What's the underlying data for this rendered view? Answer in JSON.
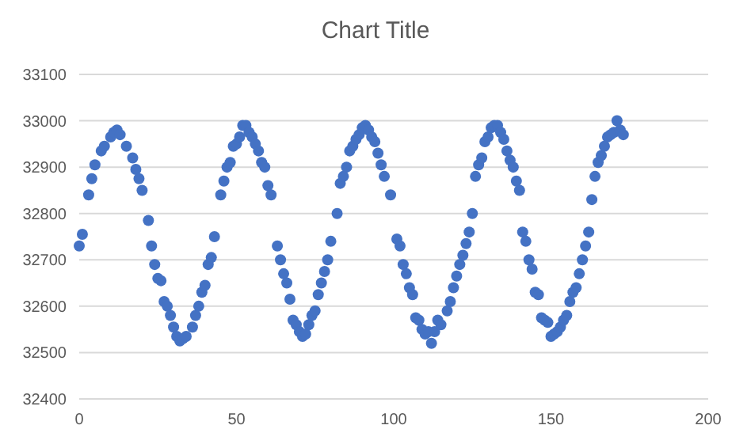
{
  "chart_data": {
    "type": "scatter",
    "title": "Chart Title",
    "marker": "circle",
    "grid": "y",
    "xlim": [
      0,
      200
    ],
    "xticks": [
      0,
      50,
      100,
      150,
      200
    ],
    "ylim": [
      32400,
      33100
    ],
    "yticks": [
      32400,
      32500,
      32600,
      32700,
      32800,
      32900,
      33000,
      33100
    ],
    "series": [
      {
        "color": "#4472c4",
        "x": [
          0,
          1,
          3,
          4,
          5,
          7,
          8,
          10,
          11,
          12,
          13,
          15,
          17,
          18,
          19,
          20,
          22,
          23,
          24,
          25,
          26,
          27,
          28,
          29,
          30,
          31,
          32,
          33,
          34,
          36,
          37,
          38,
          39,
          40,
          41,
          42,
          43,
          45,
          46,
          47,
          48,
          49,
          50,
          51,
          52,
          53,
          54,
          55,
          56,
          57,
          58,
          59,
          60,
          61,
          63,
          64,
          65,
          66,
          67,
          68,
          69,
          70,
          71,
          72,
          73,
          74,
          75,
          76,
          77,
          78,
          79,
          80,
          82,
          83,
          84,
          85,
          86,
          87,
          88,
          89,
          90,
          91,
          92,
          93,
          94,
          95,
          96,
          97,
          99,
          101,
          102,
          103,
          104,
          105,
          106,
          107,
          108,
          109,
          110,
          111,
          112,
          113,
          114,
          115,
          117,
          118,
          119,
          120,
          121,
          122,
          123,
          124,
          125,
          126,
          127,
          128,
          129,
          130,
          131,
          132,
          133,
          134,
          135,
          136,
          137,
          138,
          139,
          140,
          141,
          142,
          143,
          144,
          145,
          146,
          147,
          148,
          149,
          150,
          151,
          152,
          153,
          154,
          155,
          156,
          157,
          158,
          159,
          160,
          161,
          162,
          163,
          164,
          165,
          166,
          167,
          168,
          169,
          170,
          171,
          172,
          173
        ],
        "values": [
          32730,
          32755,
          32840,
          32875,
          32905,
          32935,
          32945,
          32965,
          32975,
          32980,
          32970,
          32945,
          32920,
          32895,
          32875,
          32850,
          32785,
          32730,
          32690,
          32660,
          32655,
          32610,
          32600,
          32580,
          32555,
          32535,
          32525,
          32530,
          32535,
          32555,
          32580,
          32600,
          32630,
          32645,
          32690,
          32705,
          32750,
          32840,
          32870,
          32900,
          32910,
          32945,
          32950,
          32965,
          32990,
          32990,
          32975,
          32965,
          32950,
          32935,
          32910,
          32900,
          32860,
          32840,
          32730,
          32700,
          32670,
          32650,
          32615,
          32570,
          32560,
          32545,
          32535,
          32540,
          32560,
          32580,
          32590,
          32625,
          32650,
          32675,
          32700,
          32740,
          32800,
          32865,
          32880,
          32900,
          32935,
          32945,
          32960,
          32970,
          32985,
          32990,
          32980,
          32965,
          32955,
          32930,
          32905,
          32880,
          32840,
          32745,
          32730,
          32690,
          32670,
          32640,
          32625,
          32575,
          32570,
          32550,
          32540,
          32545,
          32520,
          32545,
          32570,
          32560,
          32590,
          32610,
          32640,
          32665,
          32690,
          32710,
          32735,
          32760,
          32800,
          32880,
          32905,
          32920,
          32955,
          32965,
          32985,
          32990,
          32990,
          32975,
          32960,
          32935,
          32915,
          32900,
          32870,
          32850,
          32760,
          32740,
          32700,
          32680,
          32630,
          32625,
          32575,
          32570,
          32565,
          32535,
          32540,
          32545,
          32555,
          32570,
          32580,
          32610,
          32630,
          32640,
          32670,
          32700,
          32730,
          32760,
          32830,
          32880,
          32910,
          32925,
          32945,
          32965,
          32970,
          32975,
          33000,
          32980,
          32970
        ]
      }
    ]
  }
}
